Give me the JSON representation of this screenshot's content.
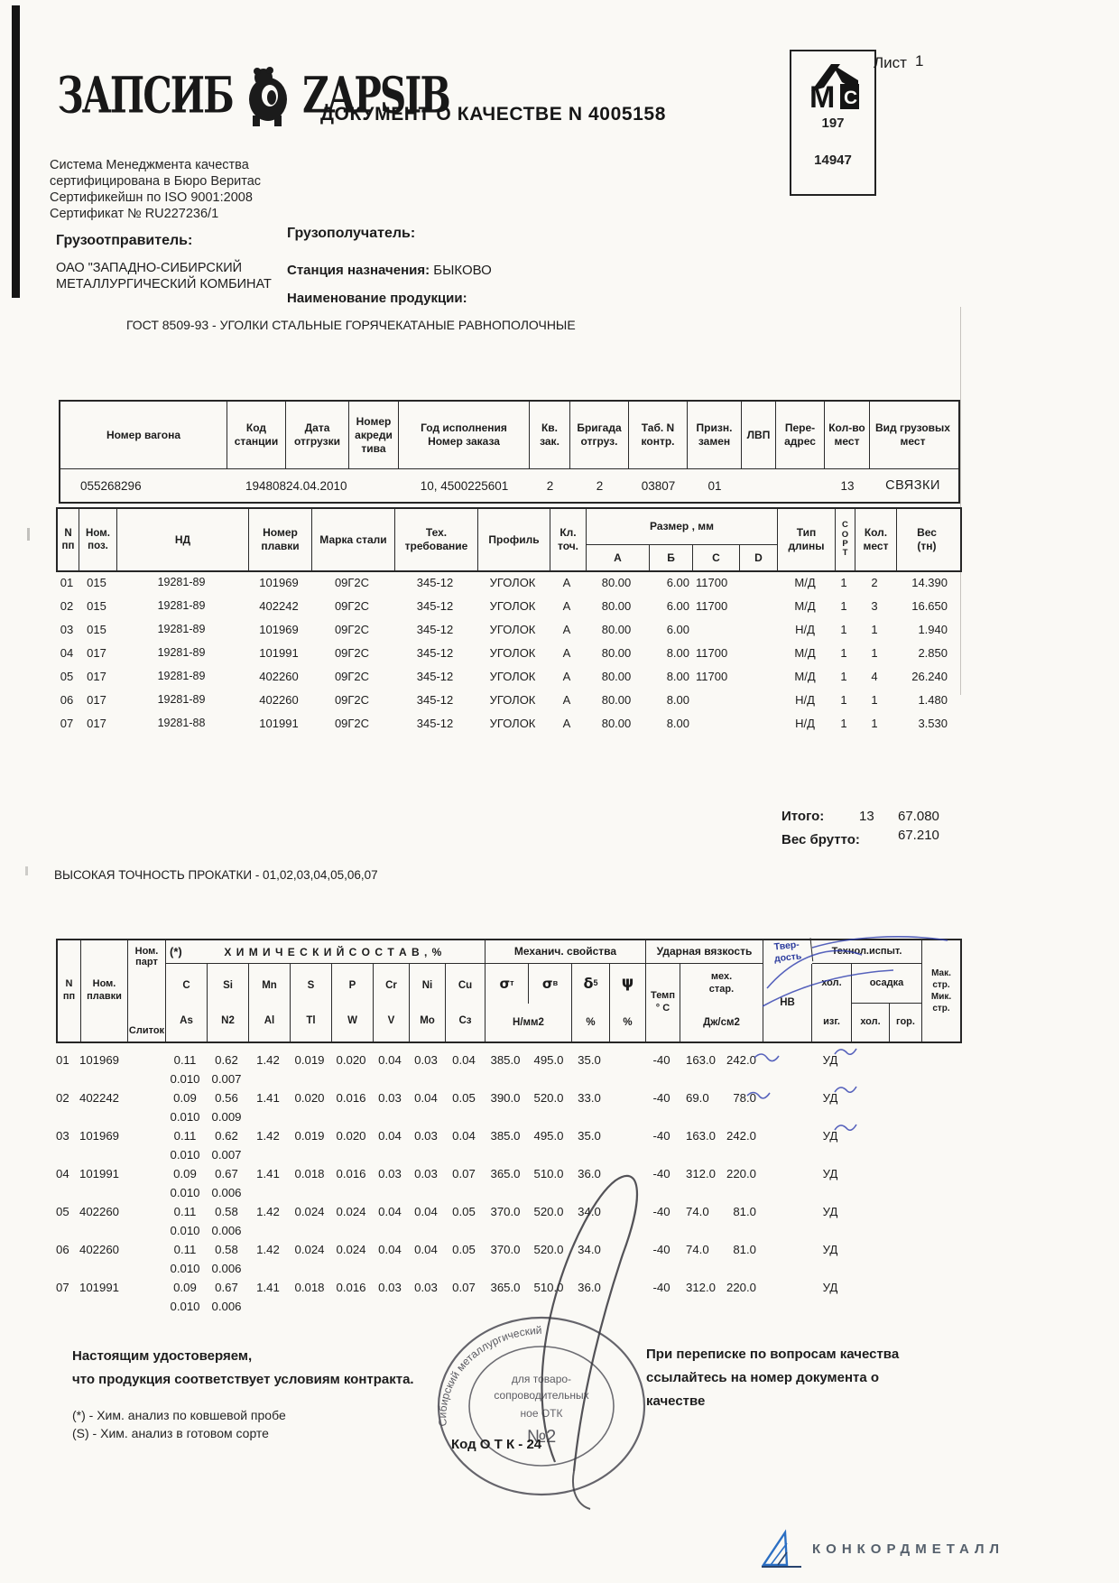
{
  "page": {
    "sheet_label": "Лист",
    "sheet_number": "1"
  },
  "logo": {
    "text_cyrillic": "ЗАПСИБ",
    "text_latin": "ZAPSIB"
  },
  "certification": {
    "line1": "Система  Менеджмента   качества",
    "line2": "сертифицирована в Бюро Веритас",
    "line3": "Сертификейшн по ISO  9001:2008",
    "line4": "Сертификат № RU227236/1"
  },
  "title": "ДОКУМЕНТ О КАЧЕСТВЕ   N 4005158",
  "ms_stamp": {
    "number_top": "197",
    "number_bottom": "14947"
  },
  "parties": {
    "shipper_label": "Грузоотправитель:",
    "shipper_name_line1": "ОАО \"ЗАПАДНО-СИБИРСКИЙ",
    "shipper_name_line2": "МЕТАЛЛУРГИЧЕСКИЙ КОМБИНАТ",
    "consignee_label": "Грузополучатель:",
    "station_label": "Станция назначения:",
    "station_value": "БЫКОВО",
    "product_label": "Наименование   продукции:",
    "product_value": "ГОСТ 8509-93  -  УГОЛКИ СТАЛЬНЫЕ ГОРЯЧЕКАТАНЫЕ РАВНОПОЛОЧНЫЕ"
  },
  "wagon_table": {
    "headers": [
      "Номер вагона",
      "Код\nстанции",
      "Дата\nотгрузки",
      "Номер\nакреди\nтива",
      "Год исполнения\nНомер заказа",
      "Кв.\nзак.",
      "Бригада\nотгруз.",
      "Таб. N\nконтр.",
      "Призн.\nзамен",
      "ЛВП",
      "Пере-\nадрес",
      "Кол-во\nмест",
      "Вид  грузовых мест"
    ],
    "row": [
      "055268296",
      "194808",
      "24.04.2010",
      "",
      "10, 4500225601",
      "2",
      "2",
      "03807",
      "01",
      "",
      "",
      "13",
      "СВЯЗКИ"
    ]
  },
  "product_table": {
    "headers": {
      "n": "N\nпп",
      "pos": "Ном.\nпоз.",
      "nd": "НД",
      "melt": "Номер\nплавки",
      "steel": "Марка стали",
      "tech": "Тех.\nтребование",
      "profile": "Профиль",
      "acc": "Кл.\nточ.",
      "size": "Размер , мм",
      "size_a": "А",
      "size_b": "Б",
      "size_c": "С",
      "size_d": "D",
      "len": "Тип\nдлины",
      "sort": "С\nО\nР\nТ",
      "places": "Кол.\nмест",
      "weight": "Вес\n(тн)"
    },
    "rows": [
      [
        "01",
        "015",
        "19281-89",
        "101969",
        "09Г2С",
        "345-12",
        "УГОЛОК",
        "А",
        "80.00",
        "6.00",
        "11700",
        "",
        "М/Д",
        "1",
        "2",
        "14.390"
      ],
      [
        "02",
        "015",
        "19281-89",
        "402242",
        "09Г2С",
        "345-12",
        "УГОЛОК",
        "А",
        "80.00",
        "6.00",
        "11700",
        "",
        "М/Д",
        "1",
        "3",
        "16.650"
      ],
      [
        "03",
        "015",
        "19281-89",
        "101969",
        "09Г2С",
        "345-12",
        "УГОЛОК",
        "А",
        "80.00",
        "6.00",
        "",
        "",
        "Н/Д",
        "1",
        "1",
        "1.940"
      ],
      [
        "04",
        "017",
        "19281-89",
        "101991",
        "09Г2С",
        "345-12",
        "УГОЛОК",
        "А",
        "80.00",
        "8.00",
        "11700",
        "",
        "М/Д",
        "1",
        "1",
        "2.850"
      ],
      [
        "05",
        "017",
        "19281-89",
        "402260",
        "09Г2С",
        "345-12",
        "УГОЛОК",
        "А",
        "80.00",
        "8.00",
        "11700",
        "",
        "М/Д",
        "1",
        "4",
        "26.240"
      ],
      [
        "06",
        "017",
        "19281-89",
        "402260",
        "09Г2С",
        "345-12",
        "УГОЛОК",
        "А",
        "80.00",
        "8.00",
        "",
        "",
        "Н/Д",
        "1",
        "1",
        "1.480"
      ],
      [
        "07",
        "017",
        "19281-88",
        "101991",
        "09Г2С",
        "345-12",
        "УГОЛОК",
        "А",
        "80.00",
        "8.00",
        "",
        "",
        "Н/Д",
        "1",
        "1",
        "3.530"
      ]
    ]
  },
  "totals": {
    "label": "Итого:",
    "places": "13",
    "weight": "67.080",
    "gross_label": "Вес брутто:",
    "gross_weight": "67.210"
  },
  "precision_note": "ВЫСОКАЯ ТОЧНОСТЬ ПРОКАТКИ   - 01,02,03,04,05,06,07",
  "chem_table": {
    "headers": {
      "n": "N\nпп",
      "melt": "Ном.\nплавки",
      "part": "Ном.\nпарт",
      "ingot": "Слиток",
      "star": "(*)",
      "chem_title": "Х И М И Ч Е С К И Й  С О С Т А В , %",
      "mech_title": "Механич. свойства",
      "impact_title": "Ударная вязкость",
      "sigma": "σ",
      "sigma_t_sub": "т",
      "sigma_v_sub": "в",
      "nmm": "Н/мм2",
      "delta": "δ",
      "delta_sub": "5",
      "psi": "ψ",
      "pct": "%",
      "temp": "Темп\n° С",
      "aging": "мех.\nстар.",
      "jcm": "Дж/см2",
      "hardness": "Твер-\nдость",
      "hb": "НВ",
      "tech_title": "Технол.испыт.",
      "bend_top": "хол.",
      "bend_bot": "изг.",
      "upset": "осадка",
      "upset_cold": "хол.",
      "upset_hot": "гор.",
      "structure": "Мак.\nстр.\nМик.\nстр."
    },
    "el_top": [
      "C",
      "Si",
      "Mn",
      "S",
      "P",
      "Cr",
      "Ni",
      "Cu"
    ],
    "el_bot": [
      "Аs",
      "N2",
      "Аl",
      "Тl",
      "W",
      "V",
      "Мо",
      "Сз"
    ],
    "rows": [
      {
        "main": [
          "01",
          "101969",
          "0.11",
          "0.62",
          "1.42",
          "0.019",
          "0.020",
          "0.04",
          "0.03",
          "0.04",
          "385.0",
          "495.0",
          "35.0",
          "-40",
          "163.0",
          "242.0",
          "УД"
        ],
        "sub": [
          "0.010",
          "0.007"
        ]
      },
      {
        "main": [
          "02",
          "402242",
          "0.09",
          "0.56",
          "1.41",
          "0.020",
          "0.016",
          "0.03",
          "0.04",
          "0.05",
          "390.0",
          "520.0",
          "33.0",
          "-40",
          "69.0",
          "78.0",
          "УД"
        ],
        "sub": [
          "0.010",
          "0.009"
        ]
      },
      {
        "main": [
          "03",
          "101969",
          "0.11",
          "0.62",
          "1.42",
          "0.019",
          "0.020",
          "0.04",
          "0.03",
          "0.04",
          "385.0",
          "495.0",
          "35.0",
          "-40",
          "163.0",
          "242.0",
          "УД"
        ],
        "sub": [
          "0.010",
          "0.007"
        ]
      },
      {
        "main": [
          "04",
          "101991",
          "0.09",
          "0.67",
          "1.41",
          "0.018",
          "0.016",
          "0.03",
          "0.03",
          "0.07",
          "365.0",
          "510.0",
          "36.0",
          "-40",
          "312.0",
          "220.0",
          "УД"
        ],
        "sub": [
          "0.010",
          "0.006"
        ]
      },
      {
        "main": [
          "05",
          "402260",
          "0.11",
          "0.58",
          "1.42",
          "0.024",
          "0.024",
          "0.04",
          "0.04",
          "0.05",
          "370.0",
          "520.0",
          "34.0",
          "-40",
          "74.0",
          "81.0",
          "УД"
        ],
        "sub": [
          "0.010",
          "0.006"
        ]
      },
      {
        "main": [
          "06",
          "402260",
          "0.11",
          "0.58",
          "1.42",
          "0.024",
          "0.024",
          "0.04",
          "0.04",
          "0.05",
          "370.0",
          "520.0",
          "34.0",
          "-40",
          "74.0",
          "81.0",
          "УД"
        ],
        "sub": [
          "0.010",
          "0.006"
        ]
      },
      {
        "main": [
          "07",
          "101991",
          "0.09",
          "0.67",
          "1.41",
          "0.018",
          "0.016",
          "0.03",
          "0.03",
          "0.07",
          "365.0",
          "510.0",
          "36.0",
          "-40",
          "312.0",
          "220.0",
          "УД"
        ],
        "sub": [
          "0.010",
          "0.006"
        ]
      }
    ]
  },
  "footer": {
    "certify_line1": "Настоящим удостоверяем,",
    "certify_line2": "что продукция соответствует условиям контракта.",
    "note1": "(*) - Хим. анализ по ковшевой пробе",
    "note2": "(S) - Хим. анализ в готовом сорте",
    "otk_code": "Код  О Т К - 24",
    "contact_line1": "При переписке по вопросам качества",
    "contact_line2": "ссылайтесь на номер документа о",
    "contact_line3": "качестве"
  },
  "round_stamp": {
    "arc_top": "Сибирский металлургический",
    "line1": "для товаро-",
    "line2": "сопроводительных",
    "line3": "ное ОТК",
    "number": "№2"
  },
  "brand": {
    "name": "КОНКОРДМЕТАЛЛ"
  },
  "colors": {
    "ink_blue": "#2d3cae",
    "stamp_gray": "#4a4a52",
    "brand_blue": "#2b6fc3"
  }
}
